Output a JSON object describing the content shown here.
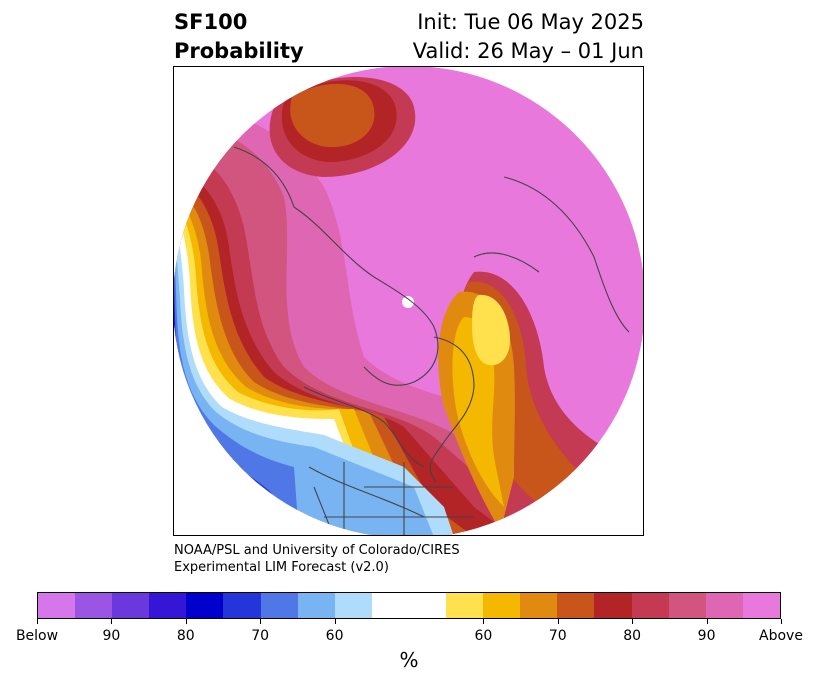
{
  "header": {
    "title_line1": "SF100",
    "title_line2": "Probability",
    "init": "Init: Tue 06 May 2025",
    "valid": "Valid: 26 May – 01 Jun"
  },
  "credit": {
    "line1": "NOAA/PSL and University of Colorado/CIRES",
    "line2": "Experimental LIM Forecast (v2.0)"
  },
  "colorbar": {
    "colors": [
      "#d577ea",
      "#9a55e3",
      "#6a38dc",
      "#3616d6",
      "#0000cc",
      "#2436d9",
      "#4f77e6",
      "#78b4f2",
      "#b0dcfb",
      "#ffffff",
      "#ffffff",
      "#ffe14d",
      "#f5b800",
      "#e08a10",
      "#c8561b",
      "#b22426",
      "#c43a53",
      "#d2557f",
      "#df66b2",
      "#e878dc"
    ],
    "labels": [
      "Below",
      "90",
      "80",
      "70",
      "60",
      "60",
      "70",
      "80",
      "90",
      "Above"
    ],
    "unit": "%"
  },
  "map": {
    "fills": {
      "above_strong": "#e878dc",
      "above_90": "#df66b2",
      "above_80": "#d2557f",
      "above_75": "#c43a53",
      "above_70": "#b22426",
      "above_65": "#c8561b",
      "above_60": "#e08a10",
      "above_55": "#f5b800",
      "above_50": "#ffe14d",
      "neutral": "#ffffff",
      "below_50": "#b0dcfb",
      "below_55": "#78b4f2",
      "below_60": "#4f77e6",
      "below_70": "#2436d9",
      "below_80": "#0000cc"
    }
  }
}
